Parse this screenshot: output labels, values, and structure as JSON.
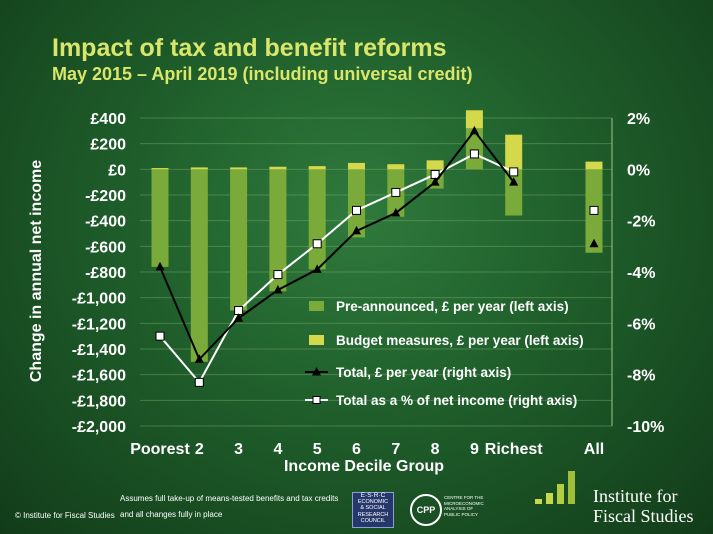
{
  "title": "Impact of tax and benefit reforms",
  "subtitle": "May 2015 – April 2019 (including universal credit)",
  "chart_data": {
    "type": "bar",
    "categories": [
      "Poorest",
      "2",
      "3",
      "4",
      "5",
      "6",
      "7",
      "8",
      "9",
      "Richest",
      "All"
    ],
    "xlabel": "Income Decile Group",
    "ylabel": "Change in annual net income",
    "left_axis": {
      "range": [
        -2000,
        400
      ],
      "ticks": [
        400,
        200,
        0,
        -200,
        -400,
        -600,
        -800,
        -1000,
        -1200,
        -1400,
        -1600,
        -1800,
        -2000
      ],
      "tick_labels": [
        "£400",
        "£200",
        "£0",
        "-£200",
        "-£400",
        "-£600",
        "-£800",
        "-£1,000",
        "-£1,200",
        "-£1,400",
        "-£1,600",
        "-£1,800",
        "-£2,000"
      ]
    },
    "right_axis": {
      "range": [
        -10,
        2
      ],
      "ticks": [
        2,
        0,
        -2,
        -4,
        -6,
        -8,
        -10
      ],
      "tick_labels": [
        "2%",
        "0%",
        "-2%",
        "-4%",
        "-6%",
        "-8%",
        "-10%"
      ]
    },
    "grid": true,
    "legend_position": "bottom-right",
    "series": [
      {
        "name": "Pre-announced, £ per year (left axis)",
        "type": "bar",
        "axis": "left",
        "color": "#7aab3a",
        "values": [
          -760,
          -1500,
          -1100,
          -950,
          -780,
          -530,
          -370,
          -150,
          320,
          -360,
          -650
        ]
      },
      {
        "name": "Budget measures, £ per year (left axis)",
        "type": "bar",
        "axis": "left",
        "color": "#d4d94c",
        "values": [
          10,
          15,
          15,
          20,
          25,
          50,
          40,
          70,
          140,
          270,
          60
        ]
      },
      {
        "name": "Total, £ per year (right axis)",
        "type": "line",
        "axis": "right",
        "color": "#000000",
        "marker": "triangle",
        "values": [
          -3.8,
          -7.4,
          -5.8,
          -4.7,
          -3.9,
          -2.4,
          -1.7,
          -0.5,
          1.5,
          -0.5,
          -2.9
        ]
      },
      {
        "name": "Total as a % of net income (right axis)",
        "type": "line",
        "axis": "right",
        "color": "#ffffff",
        "marker": "square",
        "values": [
          -6.5,
          -8.3,
          -5.5,
          -4.1,
          -2.9,
          -1.6,
          -0.9,
          -0.2,
          0.6,
          -0.1,
          -1.6
        ]
      }
    ]
  },
  "footer": {
    "copyright": "© Institute for Fiscal Studies",
    "note_line1": "Assumes full take-up of means-tested benefits and tax credits",
    "note_line2": "and all changes fully in place",
    "esrc_line1": "E·S·R·C",
    "esrc_line2": "ECONOMIC",
    "esrc_line3": "& SOCIAL",
    "esrc_line4": "RESEARCH",
    "esrc_line5": "COUNCIL",
    "cpp_mark": "CPP",
    "cpp_line1": "CENTRE FOR THE",
    "cpp_line2": "MICROECONOMIC",
    "cpp_line3": "ANALYSIS OF",
    "cpp_line4": "PUBLIC POLICY",
    "ifs_line1": "Institute for",
    "ifs_line2": "Fiscal Studies"
  }
}
